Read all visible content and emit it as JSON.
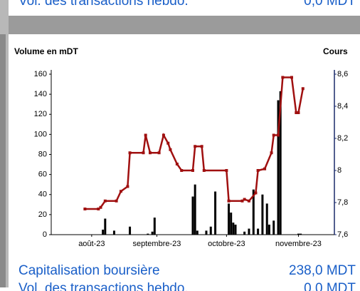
{
  "header": {
    "label": "Vol. des transactions hebdo.",
    "value": "0,0 MDT"
  },
  "chart_data": {
    "type": "bar-line",
    "y_label": "Volume en mDT",
    "y2_label": "Cours",
    "xlim": [
      0,
      126
    ],
    "xticks": [
      {
        "value": 18,
        "label": "août-23"
      },
      {
        "value": 47,
        "label": "septembre-23"
      },
      {
        "value": 78,
        "label": "octobre-23"
      },
      {
        "value": 110,
        "label": "novembre-23"
      }
    ],
    "ylim": [
      0,
      160
    ],
    "yticks": [
      0,
      20,
      40,
      60,
      80,
      100,
      120,
      140,
      160
    ],
    "y2lim": [
      7.6,
      8.6
    ],
    "y2ticks": [
      {
        "value": 7.6,
        "label": "7,6"
      },
      {
        "value": 7.8,
        "label": "7,8"
      },
      8,
      {
        "value": 8.2,
        "label": "8,2"
      },
      {
        "value": 8.4,
        "label": "8,4"
      },
      {
        "value": 8.6,
        "label": "8,6"
      }
    ],
    "series": [
      {
        "type": "bar",
        "color": "#000000",
        "x": [
          23,
          24,
          28,
          35,
          43,
          45,
          46,
          63,
          64,
          65,
          69,
          71,
          73,
          79,
          80,
          81,
          82,
          86,
          88,
          90,
          92,
          94,
          96,
          97,
          99,
          101,
          102,
          110,
          111
        ],
        "values": [
          5,
          16,
          4,
          8,
          1,
          3,
          17,
          38,
          50,
          4,
          4,
          8,
          43,
          31,
          22,
          12,
          10,
          3,
          6,
          45,
          6,
          40,
          31,
          10,
          14,
          134,
          143,
          1,
          1
        ]
      },
      {
        "type": "line",
        "axis": "y2",
        "color": "#a01010",
        "x": [
          15,
          21,
          22,
          24,
          29,
          31,
          34,
          35,
          41,
          42,
          44,
          48,
          50,
          52,
          53,
          56,
          58,
          63,
          64,
          67,
          68,
          78,
          79,
          85,
          86,
          88,
          91,
          92,
          95,
          98,
          99,
          101,
          103,
          107,
          109,
          110,
          112
        ],
        "values": [
          7.76,
          7.76,
          7.77,
          7.81,
          7.81,
          7.87,
          7.9,
          8.11,
          8.11,
          8.22,
          8.11,
          8.11,
          8.22,
          8.17,
          8.13,
          8.04,
          8.0,
          8.0,
          8.15,
          8.15,
          8.0,
          8.0,
          7.81,
          7.81,
          7.82,
          7.81,
          7.86,
          8.0,
          8.01,
          8.11,
          8.22,
          8.22,
          8.58,
          8.58,
          8.36,
          8.36,
          8.51
        ]
      }
    ]
  },
  "footer": {
    "rows": [
      {
        "label": "Capitalisation boursière",
        "value": "238,0 MDT"
      },
      {
        "label": "Vol. des transactions hebdo.",
        "value": "0,0 MDT"
      }
    ]
  }
}
